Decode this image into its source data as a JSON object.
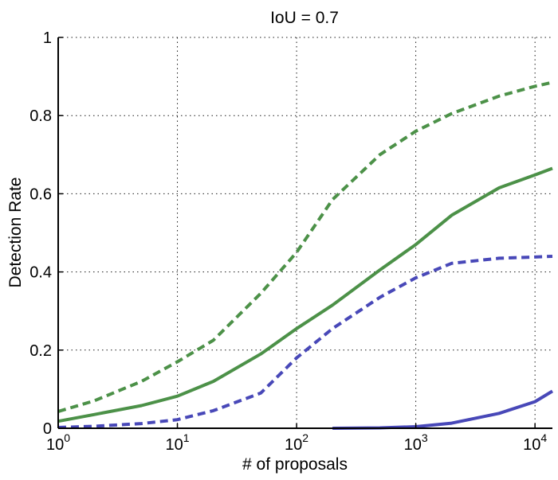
{
  "chart_data": {
    "type": "line",
    "title": "IoU = 0.7",
    "xlabel": "# of proposals",
    "ylabel": "Detection Rate",
    "xscale": "log",
    "xlim": [
      1,
      14000
    ],
    "ylim": [
      0,
      1
    ],
    "grid": true,
    "x_ticks": [
      {
        "base": "10",
        "exp": "0",
        "value": 1
      },
      {
        "base": "10",
        "exp": "1",
        "value": 10
      },
      {
        "base": "10",
        "exp": "2",
        "value": 100
      },
      {
        "base": "10",
        "exp": "3",
        "value": 1000
      },
      {
        "base": "10",
        "exp": "4",
        "value": 10000
      }
    ],
    "y_ticks": [
      {
        "label": "0",
        "value": 0
      },
      {
        "label": "0.2",
        "value": 0.2
      },
      {
        "label": "0.4",
        "value": 0.4
      },
      {
        "label": "0.6",
        "value": 0.6
      },
      {
        "label": "0.8",
        "value": 0.8
      },
      {
        "label": "1",
        "value": 1
      }
    ],
    "series": [
      {
        "color": "#4c9148",
        "style": "dashed",
        "x": [
          1,
          2,
          5,
          10,
          20,
          50,
          100,
          200,
          500,
          1000,
          2000,
          5000,
          10000,
          14000
        ],
        "y": [
          0.043,
          0.07,
          0.12,
          0.17,
          0.225,
          0.345,
          0.45,
          0.585,
          0.7,
          0.76,
          0.805,
          0.85,
          0.875,
          0.885
        ]
      },
      {
        "color": "#4c9148",
        "style": "solid",
        "x": [
          1,
          2,
          5,
          10,
          20,
          50,
          100,
          200,
          500,
          1000,
          2000,
          5000,
          10000,
          14000
        ],
        "y": [
          0.018,
          0.035,
          0.058,
          0.082,
          0.12,
          0.19,
          0.255,
          0.315,
          0.405,
          0.47,
          0.545,
          0.615,
          0.648,
          0.665
        ]
      },
      {
        "color": "#4848b8",
        "style": "dashed",
        "x": [
          1,
          2,
          5,
          10,
          20,
          50,
          100,
          200,
          500,
          1000,
          2000,
          5000,
          10000,
          14000
        ],
        "y": [
          0.002,
          0.005,
          0.012,
          0.022,
          0.045,
          0.09,
          0.18,
          0.255,
          0.335,
          0.385,
          0.422,
          0.435,
          0.438,
          0.44
        ]
      },
      {
        "color": "#4848b8",
        "style": "solid",
        "x": [
          200,
          500,
          1000,
          2000,
          5000,
          10000,
          14000
        ],
        "y": [
          0.0,
          0.001,
          0.004,
          0.013,
          0.038,
          0.068,
          0.095
        ]
      }
    ]
  }
}
